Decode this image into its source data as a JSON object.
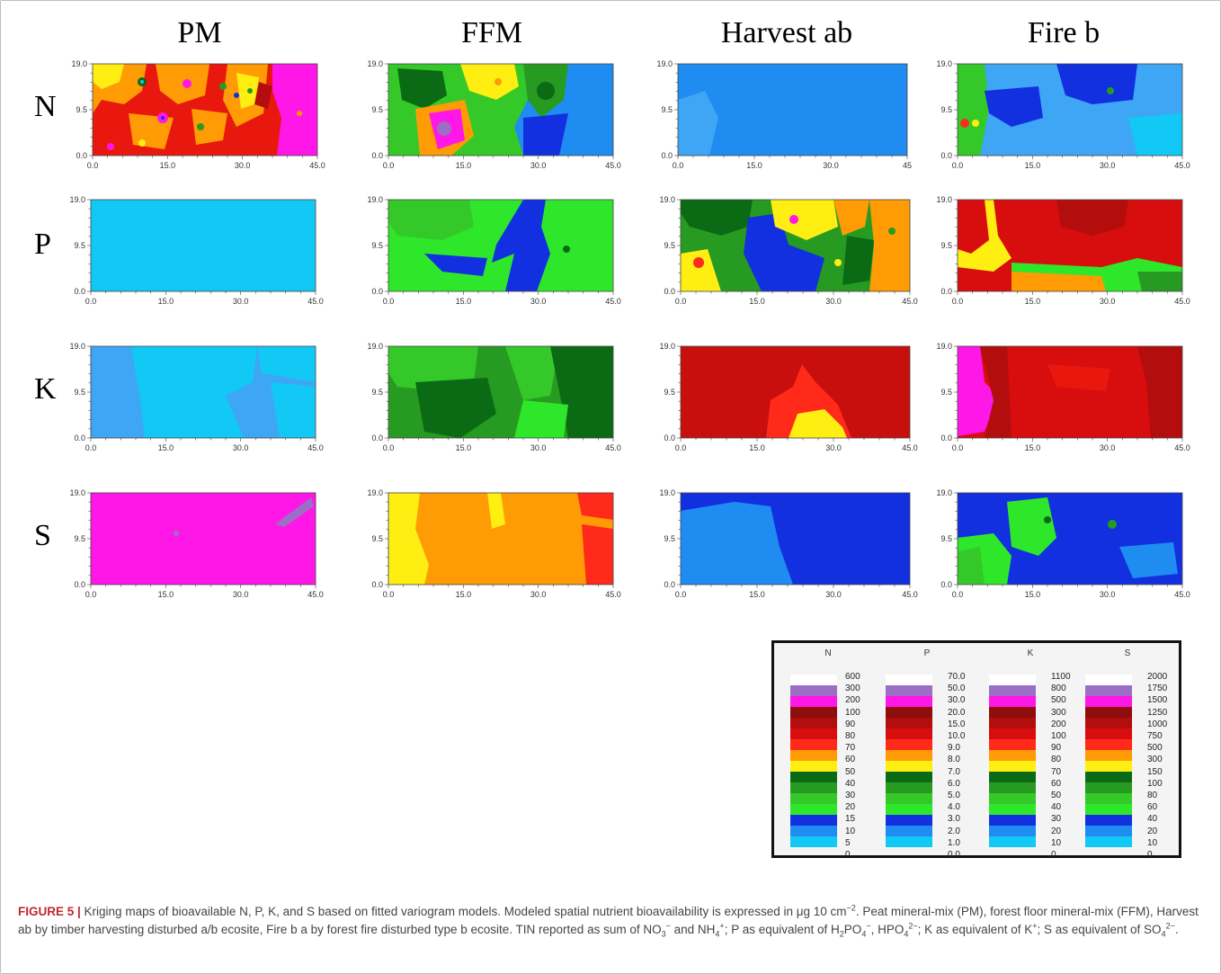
{
  "figure": {
    "columns": [
      "PM",
      "FFM",
      "Harvest ab",
      "Fire b"
    ],
    "rows": [
      "N",
      "P",
      "K",
      "S"
    ],
    "x_ticks": [
      "0.0",
      "15.0",
      "30.0",
      "45.0"
    ],
    "x_ticks_short": [
      "0.0",
      "15.0",
      "30.0",
      "45"
    ],
    "y_ticks": [
      "19.0",
      "9.5",
      "0.0"
    ]
  },
  "legend": {
    "columns": [
      {
        "name": "N",
        "values": [
          "600",
          "300",
          "200",
          "100",
          "90",
          "80",
          "70",
          "60",
          "50",
          "40",
          "30",
          "20",
          "15",
          "10",
          "5",
          "0"
        ]
      },
      {
        "name": "P",
        "values": [
          "70.0",
          "50.0",
          "30.0",
          "20.0",
          "15.0",
          "10.0",
          "9.0",
          "8.0",
          "7.0",
          "6.0",
          "5.0",
          "4.0",
          "3.0",
          "2.0",
          "1.0",
          "0.0"
        ]
      },
      {
        "name": "K",
        "values": [
          "1100",
          "800",
          "500",
          "300",
          "200",
          "100",
          "90",
          "80",
          "70",
          "60",
          "50",
          "40",
          "30",
          "20",
          "10",
          "0"
        ]
      },
      {
        "name": "S",
        "values": [
          "2000",
          "1750",
          "1500",
          "1250",
          "1000",
          "750",
          "500",
          "300",
          "150",
          "100",
          "80",
          "60",
          "40",
          "20",
          "10",
          "0"
        ]
      }
    ],
    "colors": [
      "#ffffff",
      "#9b6fc4",
      "#ff17e8",
      "#8e0d0d",
      "#b30d0d",
      "#d80d0d",
      "#ff2a1a",
      "#ff9b05",
      "#ffee11",
      "#0a6b14",
      "#279a22",
      "#34c928",
      "#2ee72a",
      "#1230e0",
      "#1e8cf0",
      "#12c8f4"
    ]
  },
  "caption": {
    "label": "FIGURE 5 |",
    "l1": " Kriging maps of bioavailable N, P, K, and S based on fitted variogram models. Modeled spatial nutrient bioavailability is expressed in μg 10 cm",
    "l1_sup": "−2",
    "l1_end": ". Peat mineral-mix (PM), forest floor mineral-mix (FFM), Harvest ab by timber harvesting disturbed a/b ecosite, Fire b a by forest fire disturbed type b ecosite. TIN reported as sum of NO",
    "no3_sub": "3",
    "no3_sup": "−",
    "and": " and NH",
    "nh4_sub": "4",
    "nh4_sup": "+",
    "p_text": "; P as equivalent of H",
    "h2_sub": "2",
    "po": "PO",
    "po4_sub": "4",
    "po4_sup": "−",
    "hpo": ", HPO",
    "hpo4_sub": "4",
    "hpo4_sup": "2−",
    "k_text": "; K as equivalent of K",
    "k_sup": "+",
    "s_text": "; S as equivalent of SO",
    "so4_sub": "4",
    "so4_sup": "2−",
    "end": "."
  }
}
